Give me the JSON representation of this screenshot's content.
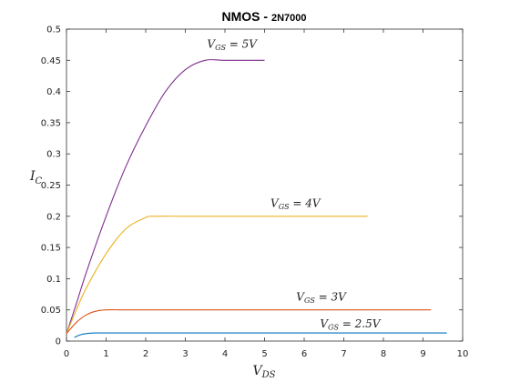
{
  "chart_data": {
    "type": "line",
    "title": "NMOS - 2N7000",
    "title_parts": {
      "main": "NMOS - ",
      "sub": "2N7000"
    },
    "xlabel": {
      "symbol": "V",
      "subscript": "DS"
    },
    "ylabel": {
      "symbol": "I",
      "subscript": "C"
    },
    "xlim": [
      0,
      10
    ],
    "ylim": [
      0,
      0.5
    ],
    "xticks": [
      0,
      1,
      2,
      3,
      4,
      5,
      6,
      7,
      8,
      9,
      10
    ],
    "yticks": [
      0,
      0.05,
      0.1,
      0.15,
      0.2,
      0.25,
      0.3,
      0.35,
      0.4,
      0.45,
      0.5
    ],
    "xtick_labels": [
      "0",
      "1",
      "2",
      "3",
      "4",
      "5",
      "6",
      "7",
      "8",
      "9",
      "10"
    ],
    "ytick_labels": [
      "0",
      "0.05",
      "0.1",
      "0.15",
      "0.2",
      "0.25",
      "0.3",
      "0.35",
      "0.4",
      "0.45",
      "0.5"
    ],
    "grid": false,
    "series": [
      {
        "name": "V_GS = 5V",
        "label": {
          "symbol": "V",
          "subscript": "GS",
          "rhs": " = 5V"
        },
        "color": "#7e2f8e",
        "x": [
          0.0,
          0.25,
          0.5,
          1.0,
          1.5,
          2.0,
          2.5,
          3.0,
          3.5,
          4.0,
          5.0
        ],
        "y": [
          0.012,
          0.06,
          0.11,
          0.2,
          0.28,
          0.345,
          0.4,
          0.435,
          0.45,
          0.45,
          0.45
        ],
        "label_pos": [
          3.55,
          0.47
        ]
      },
      {
        "name": "V_GS = 4V",
        "label": {
          "symbol": "V",
          "subscript": "GS",
          "rhs": " = 4V"
        },
        "color": "#edb120",
        "x": [
          0.0,
          0.25,
          0.5,
          1.0,
          1.5,
          2.0,
          2.2,
          3.0,
          4.0,
          5.0,
          6.0,
          7.0,
          7.6
        ],
        "y": [
          0.012,
          0.05,
          0.085,
          0.14,
          0.18,
          0.198,
          0.2,
          0.2,
          0.2,
          0.2,
          0.2,
          0.2,
          0.2
        ],
        "label_pos": [
          5.15,
          0.215
        ]
      },
      {
        "name": "V_GS = 3V",
        "label": {
          "symbol": "V",
          "subscript": "GS",
          "rhs": " = 3V"
        },
        "color": "#d95319",
        "x": [
          0.0,
          0.25,
          0.5,
          0.75,
          1.0,
          1.5,
          2.0,
          4.0,
          6.0,
          8.0,
          9.2
        ],
        "y": [
          0.012,
          0.03,
          0.042,
          0.048,
          0.05,
          0.05,
          0.05,
          0.05,
          0.05,
          0.05,
          0.05
        ],
        "label_pos": [
          5.8,
          0.065
        ]
      },
      {
        "name": "V_GS = 2.5V",
        "label": {
          "symbol": "V",
          "subscript": "GS",
          "rhs": " = 2.5V"
        },
        "color": "#0072bd",
        "x": [
          0.2,
          0.35,
          0.5,
          0.75,
          1.0,
          2.0,
          4.0,
          6.0,
          8.0,
          9.6
        ],
        "y": [
          0.006,
          0.01,
          0.012,
          0.013,
          0.013,
          0.013,
          0.013,
          0.013,
          0.013,
          0.013
        ],
        "label_pos": [
          6.4,
          0.022
        ]
      }
    ]
  }
}
